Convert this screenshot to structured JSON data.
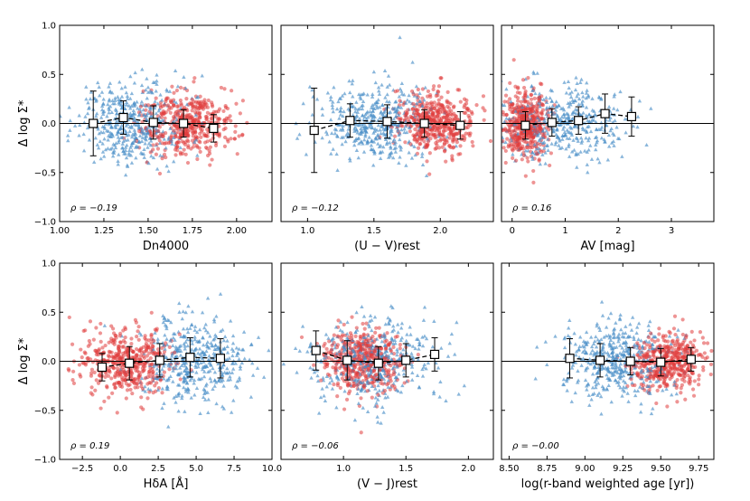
{
  "colors": {
    "blue": "#4a8fc7",
    "red": "#e03c3c",
    "axis": "#000000",
    "median_face": "#ffffff"
  },
  "chart_data": [
    {
      "type": "scatter",
      "xlabel": "Dn4000",
      "ylabel": "Δ log Σ*",
      "xlim": [
        1.0,
        2.2
      ],
      "ylim": [
        -1.0,
        1.0
      ],
      "xticks": [
        1.0,
        1.25,
        1.5,
        1.75,
        2.0
      ],
      "xtick_labels": [
        "1.00",
        "1.25",
        "1.50",
        "1.75",
        "2.00"
      ],
      "yticks": [
        -1.0,
        -0.5,
        0.0,
        0.5,
        1.0
      ],
      "ytick_labels": [
        "−1.0",
        "−0.5",
        "0.0",
        "0.5",
        "1.0"
      ],
      "rho_text": "ρ = −0.19",
      "blue_cloud": {
        "cx": 1.4,
        "sx": 0.15,
        "sy": 0.2,
        "n": 450
      },
      "red_cloud": {
        "cx": 1.72,
        "sx": 0.13,
        "sy": 0.17,
        "n": 450
      },
      "medians": {
        "x": [
          1.19,
          1.36,
          1.53,
          1.7,
          1.87
        ],
        "y": [
          0.0,
          0.06,
          0.01,
          0.0,
          -0.05
        ],
        "err": [
          0.33,
          0.17,
          0.17,
          0.14,
          0.14
        ]
      }
    },
    {
      "type": "scatter",
      "xlabel": "(U − V)rest",
      "ylabel": "",
      "xlim": [
        0.8,
        2.4
      ],
      "ylim": [
        -1.0,
        1.0
      ],
      "xticks": [
        1.0,
        1.5,
        2.0
      ],
      "xtick_labels": [
        "1.0",
        "1.5",
        "2.0"
      ],
      "yticks": [
        -1.0,
        -0.5,
        0.0,
        0.5,
        1.0
      ],
      "ytick_labels": [],
      "rho_text": "ρ = −0.12",
      "blue_cloud": {
        "cx": 1.5,
        "sx": 0.22,
        "sy": 0.2,
        "n": 450
      },
      "red_cloud": {
        "cx": 1.95,
        "sx": 0.15,
        "sy": 0.15,
        "n": 450
      },
      "medians": {
        "x": [
          1.05,
          1.32,
          1.6,
          1.88,
          2.15
        ],
        "y": [
          -0.07,
          0.03,
          0.02,
          0.0,
          -0.02
        ],
        "err": [
          0.43,
          0.17,
          0.17,
          0.14,
          0.14
        ]
      }
    },
    {
      "type": "scatter",
      "xlabel": "AV [mag]",
      "ylabel": "",
      "xlim": [
        -0.2,
        3.8
      ],
      "ylim": [
        -1.0,
        1.0
      ],
      "xticks": [
        0,
        1,
        2,
        3
      ],
      "xtick_labels": [
        "0",
        "1",
        "2",
        "3"
      ],
      "yticks": [
        -1.0,
        -0.5,
        0.0,
        0.5,
        1.0
      ],
      "ytick_labels": [],
      "rho_text": "ρ = 0.16",
      "blue_cloud": {
        "cx": 0.9,
        "sx": 0.6,
        "sy": 0.2,
        "n": 450
      },
      "red_cloud": {
        "cx": 0.25,
        "sx": 0.2,
        "sy": 0.17,
        "n": 450
      },
      "medians": {
        "x": [
          0.25,
          0.75,
          1.25,
          1.75,
          2.25
        ],
        "y": [
          -0.02,
          0.01,
          0.03,
          0.1,
          0.07
        ],
        "err": [
          0.14,
          0.14,
          0.14,
          0.2,
          0.2
        ]
      }
    },
    {
      "type": "scatter",
      "xlabel": "HδA [Å]",
      "ylabel": "Δ log Σ*",
      "xlim": [
        -4.0,
        10.0
      ],
      "ylim": [
        -1.0,
        1.0
      ],
      "xticks": [
        -2.5,
        0.0,
        2.5,
        5.0,
        7.5,
        10.0
      ],
      "xtick_labels": [
        "−2.5",
        "0.0",
        "2.5",
        "5.0",
        "7.5",
        "10.0"
      ],
      "yticks": [
        -1.0,
        -0.5,
        0.0,
        0.5,
        1.0
      ],
      "ytick_labels": [
        "−1.0",
        "−0.5",
        "0.0",
        "0.5",
        "1.0"
      ],
      "rho_text": "ρ = 0.19",
      "blue_cloud": {
        "cx": 4.8,
        "sx": 1.8,
        "sy": 0.22,
        "n": 450
      },
      "red_cloud": {
        "cx": 0.3,
        "sx": 1.5,
        "sy": 0.17,
        "n": 450
      },
      "medians": {
        "x": [
          -1.2,
          0.6,
          2.6,
          4.6,
          6.6
        ],
        "y": [
          -0.06,
          -0.02,
          0.01,
          0.04,
          0.03
        ],
        "err": [
          0.14,
          0.17,
          0.17,
          0.2,
          0.2
        ]
      }
    },
    {
      "type": "scatter",
      "xlabel": "(V − J)rest",
      "ylabel": "",
      "xlim": [
        0.5,
        2.2
      ],
      "ylim": [
        -1.0,
        1.0
      ],
      "xticks": [
        1.0,
        1.5,
        2.0
      ],
      "xtick_labels": [
        "1.0",
        "1.5",
        "2.0"
      ],
      "yticks": [
        -1.0,
        -0.5,
        0.0,
        0.5,
        1.0
      ],
      "ytick_labels": [],
      "rho_text": "ρ = −0.06",
      "blue_cloud": {
        "cx": 1.25,
        "sx": 0.25,
        "sy": 0.22,
        "n": 450
      },
      "red_cloud": {
        "cx": 1.15,
        "sx": 0.15,
        "sy": 0.17,
        "n": 450
      },
      "medians": {
        "x": [
          0.78,
          1.03,
          1.28,
          1.5,
          1.73
        ],
        "y": [
          0.11,
          0.01,
          -0.02,
          0.01,
          0.07
        ],
        "err": [
          0.2,
          0.2,
          0.17,
          0.17,
          0.17
        ]
      }
    },
    {
      "type": "scatter",
      "xlabel": "log(r-band weighted age [yr])",
      "ylabel": "",
      "xlim": [
        8.45,
        9.85
      ],
      "ylim": [
        -1.0,
        1.0
      ],
      "xticks": [
        8.5,
        8.75,
        9.0,
        9.25,
        9.5,
        9.75
      ],
      "xtick_labels": [
        "8.50",
        "8.75",
        "9.00",
        "9.25",
        "9.50",
        "9.75"
      ],
      "yticks": [
        -1.0,
        -0.5,
        0.0,
        0.5,
        1.0
      ],
      "ytick_labels": [],
      "rho_text": "ρ = −0.00",
      "blue_cloud": {
        "cx": 9.2,
        "sx": 0.18,
        "sy": 0.2,
        "n": 450
      },
      "red_cloud": {
        "cx": 9.55,
        "sx": 0.12,
        "sy": 0.16,
        "n": 450
      },
      "medians": {
        "x": [
          8.9,
          9.1,
          9.3,
          9.5,
          9.7
        ],
        "y": [
          0.03,
          0.01,
          0.0,
          -0.01,
          0.02
        ],
        "err": [
          0.2,
          0.17,
          0.14,
          0.14,
          0.12
        ]
      }
    }
  ]
}
